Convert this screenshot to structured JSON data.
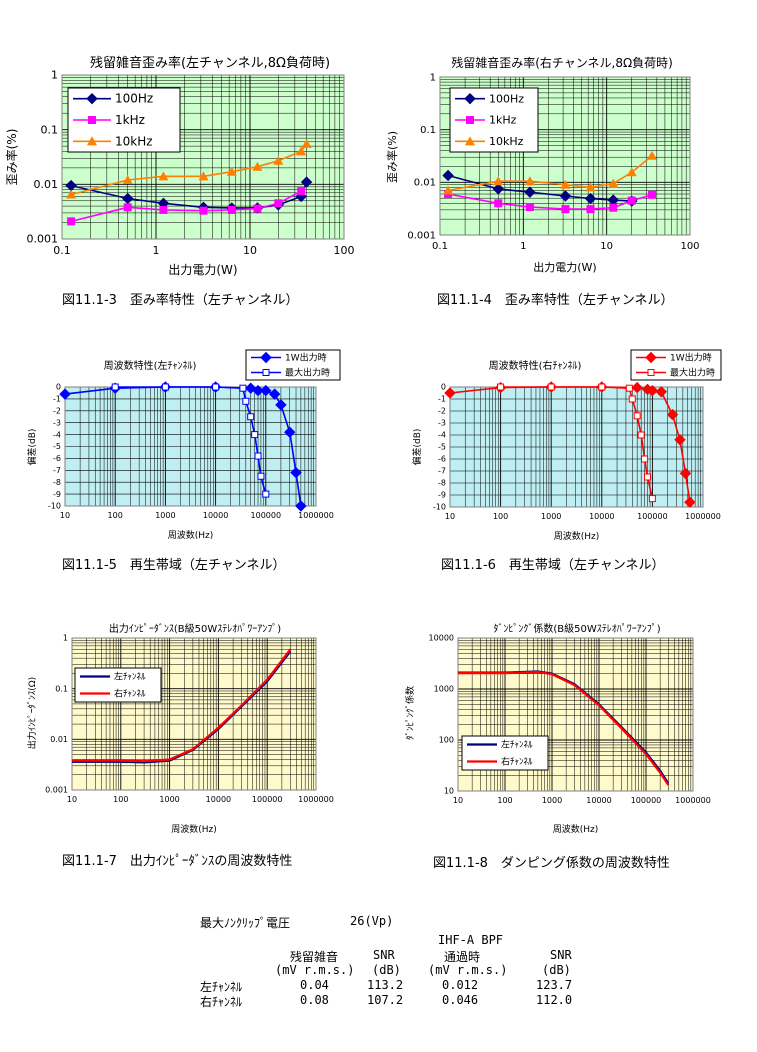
{
  "colors": {
    "dist_bg": "#ccffcc",
    "freq_bg": "#bfeef3",
    "imp_bg": "#fffacc",
    "grid": "#000000",
    "navy": "#000080",
    "magenta": "#ff00ff",
    "orange": "#ff8000",
    "blue": "#0000ff",
    "red": "#ff0000"
  },
  "captions": {
    "c1": "図11.1-3　歪み率特性（左チャンネル）",
    "c2": "図11.1-4　歪み率特性（左チャンネル）",
    "c3": "図11.1-5　再生帯域（左チャンネル）",
    "c4": "図11.1-6　再生帯域（左チャンネル）",
    "c5": "図11.1-7　出力ｲﾝﾋﾟｰﾀﾞﾝｽの周波数特性",
    "c6": "図11.1-8　ダンピング係数の周波数特性"
  },
  "summary": {
    "title": "最大ﾉﾝｸﾘｯﾌﾟ電圧",
    "title_value": "26(Vp)",
    "header_ihfa": "IHF-A BPF",
    "col_noise": "残留雑音",
    "col_snr": "SNR",
    "col_pass": "通過時",
    "col_snr2": "SNR",
    "unit_noise": "(mV r.m.s.)",
    "unit_snr": "(dB)",
    "unit_pass": "(mV r.m.s.)",
    "unit_snr2": "(dB)",
    "rows": [
      {
        "ch": "左ﾁｬﾝﾈﾙ",
        "noise": "0.04",
        "snr": "113.2",
        "pass": "0.012",
        "snr2": "123.7"
      },
      {
        "ch": "右ﾁｬﾝﾈﾙ",
        "noise": "0.08",
        "snr": "107.2",
        "pass": "0.046",
        "snr2": "112.0"
      }
    ]
  },
  "chart_data": [
    {
      "id": "dist-left",
      "type": "line",
      "title": "残留雑音歪み率(左チャンネル,8Ω負荷時)",
      "xlabel": "出力電力(W)",
      "ylabel": "歪み率(%)",
      "xscale": "log",
      "yscale": "log",
      "xlim": [
        0.1,
        100
      ],
      "ylim": [
        0.001,
        1
      ],
      "xticks": [
        "0.1",
        "1",
        "10",
        "100"
      ],
      "yticks": [
        "0.001",
        "0.01",
        "0.1",
        "1"
      ],
      "grid": true,
      "legend": "top-left",
      "series": [
        {
          "name": "100Hz",
          "color": "#000080",
          "marker": "diamond",
          "x": [
            0.125,
            0.5,
            1.2,
            3.2,
            6.4,
            12,
            20,
            35,
            40
          ],
          "y": [
            0.0095,
            0.0055,
            0.0045,
            0.0038,
            0.0037,
            0.0037,
            0.0042,
            0.006,
            0.011
          ]
        },
        {
          "name": "1kHz",
          "color": "#ff00ff",
          "marker": "square",
          "x": [
            0.125,
            0.5,
            1.2,
            3.2,
            6.4,
            12,
            20,
            35
          ],
          "y": [
            0.0021,
            0.0038,
            0.0034,
            0.0033,
            0.0034,
            0.0036,
            0.0045,
            0.0075
          ]
        },
        {
          "name": "10kHz",
          "color": "#ff8000",
          "marker": "triangle",
          "x": [
            0.125,
            0.5,
            1.2,
            3.2,
            6.4,
            12,
            20,
            35,
            40
          ],
          "y": [
            0.0065,
            0.012,
            0.014,
            0.014,
            0.017,
            0.021,
            0.027,
            0.04,
            0.055
          ]
        }
      ]
    },
    {
      "id": "dist-right",
      "type": "line",
      "title": "残留雑音歪み率(右チャンネル,8Ω負荷時)",
      "xlabel": "出力電力(W)",
      "ylabel": "歪み率(%)",
      "xscale": "log",
      "yscale": "log",
      "xlim": [
        0.1,
        100
      ],
      "ylim": [
        0.001,
        1
      ],
      "xticks": [
        "0.1",
        "1",
        "10",
        "100"
      ],
      "yticks": [
        "0.001",
        "0.01",
        "0.1",
        "1"
      ],
      "grid": true,
      "legend": "top-left",
      "series": [
        {
          "name": "100Hz",
          "color": "#000080",
          "marker": "diamond",
          "x": [
            0.125,
            0.5,
            1.2,
            3.2,
            6.4,
            12,
            20
          ],
          "y": [
            0.0135,
            0.0075,
            0.0065,
            0.0055,
            0.0049,
            0.0046,
            0.0044
          ]
        },
        {
          "name": "1kHz",
          "color": "#ff00ff",
          "marker": "square",
          "x": [
            0.125,
            0.5,
            1.2,
            3.2,
            6.4,
            12,
            20,
            35
          ],
          "y": [
            0.006,
            0.004,
            0.0034,
            0.0031,
            0.0031,
            0.0033,
            0.0045,
            0.0058
          ]
        },
        {
          "name": "10kHz",
          "color": "#ff8000",
          "marker": "triangle",
          "x": [
            0.125,
            0.5,
            1.2,
            3.2,
            6.4,
            12,
            20,
            35
          ],
          "y": [
            0.007,
            0.0105,
            0.0105,
            0.009,
            0.008,
            0.0095,
            0.0155,
            0.032
          ]
        }
      ]
    },
    {
      "id": "freq-left",
      "type": "line",
      "title": "周波数特性(左ﾁｬﾝﾈﾙ)",
      "xlabel": "周波数(Hz)",
      "ylabel": "偏差(dB)",
      "xscale": "log",
      "yscale": "linear",
      "xlim": [
        10,
        1000000
      ],
      "ylim": [
        -10,
        0
      ],
      "xticks": [
        "10",
        "100",
        "1000",
        "10000",
        "100000",
        "1000000"
      ],
      "yticks": [
        "0",
        "-1",
        "-2",
        "-3",
        "-4",
        "-5",
        "-6",
        "-7",
        "-8",
        "-9",
        "-10"
      ],
      "grid": true,
      "legend": "top-right",
      "series": [
        {
          "name": "1W出力時",
          "color": "#0000ff",
          "marker": "diamond-filled",
          "x": [
            10,
            100,
            1000,
            10000,
            50000,
            70000,
            100000,
            150000,
            200000,
            300000,
            400000,
            500000
          ],
          "y": [
            -0.6,
            -0.1,
            0,
            0,
            -0.1,
            -0.3,
            -0.3,
            -0.6,
            -1.5,
            -3.8,
            -7.2,
            -10
          ]
        },
        {
          "name": "最大出力時",
          "color": "#0000ff",
          "marker": "square-open",
          "x": [
            100,
            1000,
            10000,
            35000,
            40000,
            50000,
            60000,
            70000,
            80000,
            100000
          ],
          "y": [
            0,
            0,
            0,
            -0.1,
            -1.2,
            -2.5,
            -4,
            -5.8,
            -7.5,
            -9
          ]
        }
      ]
    },
    {
      "id": "freq-right",
      "type": "line",
      "title": "周波数特性(右ﾁｬﾝﾈﾙ)",
      "xlabel": "周波数(Hz)",
      "ylabel": "偏差(dB)",
      "xscale": "log",
      "yscale": "linear",
      "xlim": [
        10,
        1000000
      ],
      "ylim": [
        -10,
        0
      ],
      "xticks": [
        "10",
        "100",
        "1000",
        "10000",
        "100000",
        "1000000"
      ],
      "yticks": [
        "0",
        "-1",
        "-2",
        "-3",
        "-4",
        "-5",
        "-6",
        "-7",
        "-8",
        "-9",
        "-10"
      ],
      "grid": true,
      "legend": "top-right",
      "series": [
        {
          "name": "1W出力時",
          "color": "#ff0000",
          "marker": "diamond-filled",
          "x": [
            10,
            100,
            1000,
            10000,
            50000,
            80000,
            100000,
            150000,
            250000,
            350000,
            450000,
            550000
          ],
          "y": [
            -0.5,
            -0.05,
            0,
            0,
            -0.05,
            -0.2,
            -0.3,
            -0.4,
            -2.3,
            -4.4,
            -7.2,
            -9.6
          ]
        },
        {
          "name": "最大出力時",
          "color": "#ff0000",
          "marker": "square-open",
          "x": [
            100,
            1000,
            10000,
            35000,
            40000,
            50000,
            60000,
            70000,
            80000,
            100000
          ],
          "y": [
            0,
            0,
            0,
            -0.1,
            -1,
            -2.4,
            -4,
            -6,
            -7.5,
            -9.3
          ]
        }
      ]
    },
    {
      "id": "imp",
      "type": "line",
      "title": "出力ｲﾝﾋﾟｰﾀﾞﾝｽ(B級50Wｽﾃﾚｵﾊﾟﾜｰｱﾝﾌﾟ)",
      "xlabel": "周波数(Hz)",
      "ylabel": "出力ｲﾝﾋﾟｰﾀﾞﾝｽ(Ω)",
      "xscale": "log",
      "yscale": "log",
      "xlim": [
        10,
        1000000
      ],
      "ylim": [
        0.001,
        1
      ],
      "xticks": [
        "10",
        "100",
        "1000",
        "10000",
        "100000",
        "1000000"
      ],
      "yticks": [
        "0.001",
        "0.01",
        "0.1",
        "1"
      ],
      "grid": true,
      "legend": "left",
      "series": [
        {
          "name": "左ﾁｬﾝﾈﾙ",
          "color": "#000080",
          "x": [
            10,
            100,
            300,
            1000,
            3000,
            10000,
            30000,
            100000,
            300000
          ],
          "y": [
            0.0036,
            0.0036,
            0.0035,
            0.0038,
            0.0062,
            0.016,
            0.045,
            0.14,
            0.55
          ]
        },
        {
          "name": "右ﾁｬﾝﾈﾙ",
          "color": "#ff0000",
          "x": [
            10,
            100,
            300,
            1000,
            3000,
            10000,
            30000,
            100000,
            300000
          ],
          "y": [
            0.0038,
            0.0038,
            0.0037,
            0.004,
            0.0064,
            0.017,
            0.047,
            0.15,
            0.6
          ]
        }
      ]
    },
    {
      "id": "damp",
      "type": "line",
      "title": "ﾀﾞﾝﾋﾟﾝｸﾞ係数(B級50Wｽﾃﾚｵﾊﾟﾜｰｱﾝﾌﾟ)",
      "xlabel": "周波数(Hz)",
      "ylabel": "ﾀﾞﾝﾋﾟﾝｸﾞ係数",
      "xscale": "log",
      "yscale": "log",
      "xlim": [
        10,
        1000000
      ],
      "ylim": [
        10,
        10000
      ],
      "xticks": [
        "10",
        "100",
        "1000",
        "10000",
        "100000",
        "1000000"
      ],
      "yticks": [
        "10",
        "100",
        "1000",
        "10000"
      ],
      "grid": true,
      "legend": "bottom-left",
      "series": [
        {
          "name": "左ﾁｬﾝﾈﾙ",
          "color": "#000080",
          "x": [
            10,
            100,
            500,
            1000,
            3000,
            10000,
            30000,
            100000,
            200000,
            300000
          ],
          "y": [
            2100,
            2100,
            2200,
            2000,
            1250,
            500,
            180,
            57,
            25,
            14
          ]
        },
        {
          "name": "右ﾁｬﾝﾈﾙ",
          "color": "#ff0000",
          "x": [
            10,
            100,
            500,
            1000,
            3000,
            10000,
            30000,
            100000,
            200000,
            300000
          ],
          "y": [
            2050,
            2050,
            2150,
            1950,
            1200,
            480,
            170,
            53,
            23,
            13
          ]
        }
      ]
    }
  ]
}
